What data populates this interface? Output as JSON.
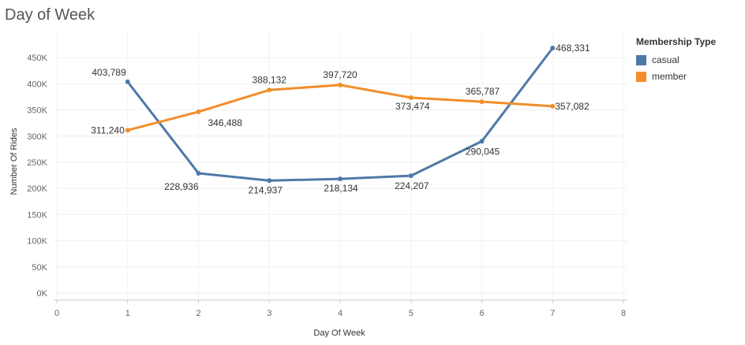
{
  "title": "Day of Week",
  "chart_data": {
    "type": "line",
    "x": [
      1,
      2,
      3,
      4,
      5,
      6,
      7
    ],
    "xlabel": "Day Of Week",
    "ylabel": "Number Of Rides",
    "xlim": [
      0,
      8
    ],
    "ylim": [
      0,
      468331
    ],
    "x_ticks": [
      "0",
      "1",
      "2",
      "3",
      "4",
      "5",
      "6",
      "7",
      "8"
    ],
    "y_tick_values": [
      0,
      50000,
      100000,
      150000,
      200000,
      250000,
      300000,
      350000,
      400000,
      450000
    ],
    "y_tick_labels": [
      "0K",
      "50K",
      "100K",
      "150K",
      "200K",
      "250K",
      "300K",
      "350K",
      "400K",
      "450K"
    ],
    "grid": true,
    "legend_title": "Membership Type",
    "legend_position": "right",
    "series": [
      {
        "name": "casual",
        "color": "#4e79a7",
        "values": [
          403789,
          228936,
          214937,
          218134,
          224207,
          290045,
          468331
        ],
        "labels": [
          "403,789",
          "228,936",
          "214,937",
          "218,134",
          "224,207",
          "290,045",
          "468,331"
        ]
      },
      {
        "name": "member",
        "color": "#f28e2b",
        "values": [
          311240,
          346488,
          388132,
          397720,
          373474,
          365787,
          357082
        ],
        "labels": [
          "311,240",
          "346,488",
          "388,132",
          "397,720",
          "373,474",
          "365,787",
          "357,082"
        ]
      }
    ]
  }
}
